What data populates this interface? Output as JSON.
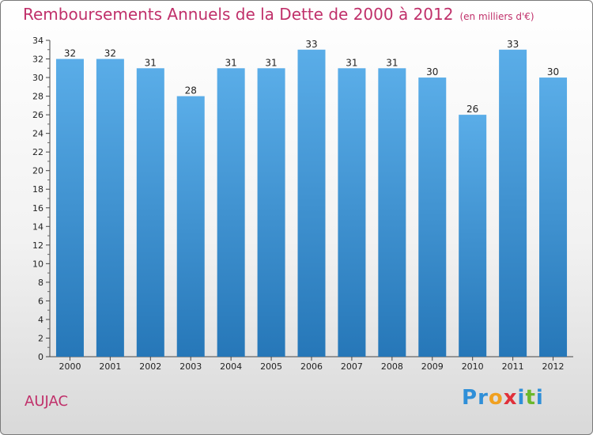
{
  "title": "Remboursements Annuels de la Dette de 2000 à 2012",
  "unit": "(en milliers d'€)",
  "place": "AUJAC",
  "brand": {
    "letters": [
      {
        "ch": "P",
        "color": "#2f8fd8"
      },
      {
        "ch": "r",
        "color": "#2f8fd8"
      },
      {
        "ch": "o",
        "color": "#f0a020"
      },
      {
        "ch": "x",
        "color": "#e0303a"
      },
      {
        "ch": "i",
        "color": "#2f8fd8"
      },
      {
        "ch": "t",
        "color": "#6ab82c"
      },
      {
        "ch": "i",
        "color": "#2f8fd8"
      }
    ]
  },
  "colors": {
    "bar_top": "#5aade8",
    "bar_bottom": "#2677b8",
    "accent": "#c0306a"
  },
  "chart_data": {
    "type": "bar",
    "categories": [
      "2000",
      "2001",
      "2002",
      "2003",
      "2004",
      "2005",
      "2006",
      "2007",
      "2008",
      "2009",
      "2010",
      "2011",
      "2012"
    ],
    "values": [
      32,
      32,
      31,
      28,
      31,
      31,
      33,
      31,
      31,
      30,
      26,
      33,
      30
    ],
    "ylim": [
      0,
      34
    ],
    "yticks": [
      0,
      2,
      4,
      6,
      8,
      10,
      12,
      14,
      16,
      18,
      20,
      22,
      24,
      26,
      28,
      30,
      32,
      34
    ],
    "grid": false,
    "legend": "none"
  }
}
